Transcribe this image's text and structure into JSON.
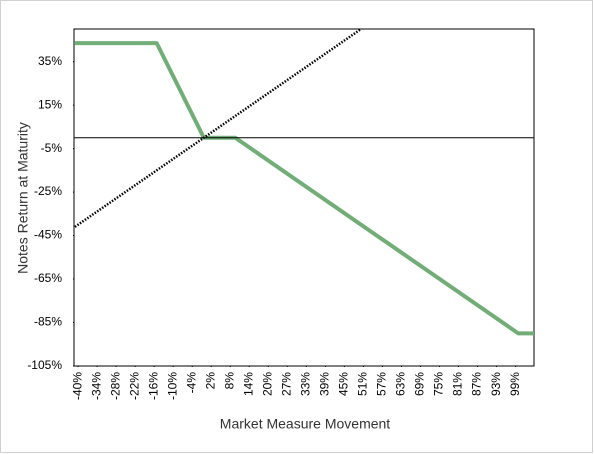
{
  "chart_data": {
    "type": "line",
    "x_label": "Market Measure Movement",
    "y_label": "Notes Return at Maturity",
    "series": [
      {
        "color": "#72ad78",
        "x": [
          -41,
          -15,
          0,
          10,
          100,
          105
        ],
        "values": [
          43.5,
          43.5,
          0,
          0,
          -90,
          -90
        ],
        "style": "solid"
      },
      {
        "color": "#000000",
        "x": [
          -41,
          50
        ],
        "values": [
          -41,
          50
        ],
        "style": "dotted"
      }
    ],
    "xlim": [
      -41.3,
      105
    ],
    "ylim": [
      -105,
      50
    ],
    "xticks": [
      {
        "value": -40,
        "label": "-40%"
      },
      {
        "value": -33.95,
        "label": "-34%"
      },
      {
        "value": -27.9,
        "label": "-28%"
      },
      {
        "value": -21.85,
        "label": "-22%"
      },
      {
        "value": -15.8,
        "label": "-16%"
      },
      {
        "value": -9.75,
        "label": "-10%"
      },
      {
        "value": -3.7,
        "label": "-4%"
      },
      {
        "value": 2.35,
        "label": "2%"
      },
      {
        "value": 8.4,
        "label": "8%"
      },
      {
        "value": 14.45,
        "label": "14%"
      },
      {
        "value": 20.5,
        "label": "20%"
      },
      {
        "value": 26.55,
        "label": "27%"
      },
      {
        "value": 32.6,
        "label": "33%"
      },
      {
        "value": 38.65,
        "label": "39%"
      },
      {
        "value": 44.7,
        "label": "45%"
      },
      {
        "value": 50.75,
        "label": "51%"
      },
      {
        "value": 56.8,
        "label": "57%"
      },
      {
        "value": 62.85,
        "label": "63%"
      },
      {
        "value": 68.9,
        "label": "69%"
      },
      {
        "value": 74.95,
        "label": "75%"
      },
      {
        "value": 81,
        "label": "81%"
      },
      {
        "value": 87.05,
        "label": "87%"
      },
      {
        "value": 93.1,
        "label": "93%"
      },
      {
        "value": 99.15,
        "label": "99%"
      }
    ],
    "yticks": [
      {
        "value": 35,
        "label": "35%"
      },
      {
        "value": 15,
        "label": "15%"
      },
      {
        "value": -5,
        "label": "-5%"
      },
      {
        "value": -25,
        "label": "-25%"
      },
      {
        "value": -45,
        "label": "-45%"
      },
      {
        "value": -65,
        "label": "-65%"
      },
      {
        "value": -85,
        "label": "-85%"
      },
      {
        "value": -105,
        "label": "-105%"
      }
    ],
    "grid": false
  }
}
